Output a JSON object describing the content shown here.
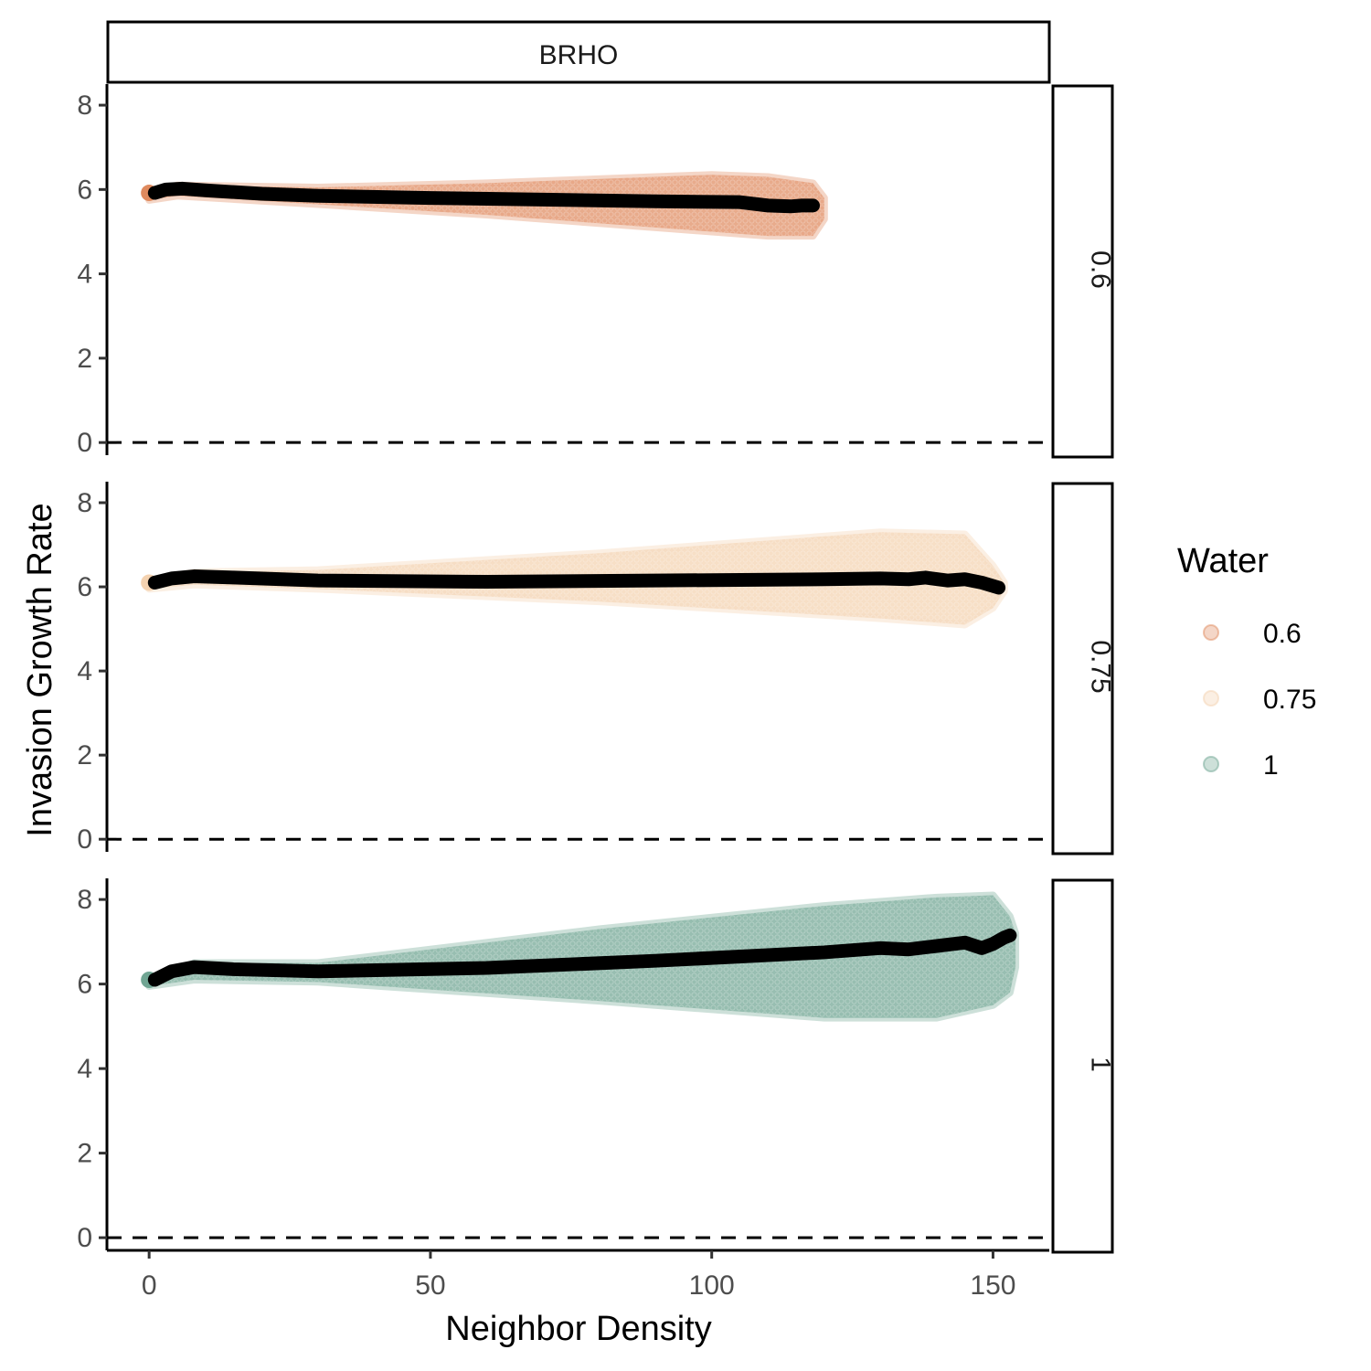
{
  "chart_data": {
    "type": "scatter",
    "title": "",
    "facet_column_label": "BRHO",
    "xlabel": "Neighbor Density",
    "ylabel": "Invasion Growth Rate",
    "xlim": [
      -7.5,
      160
    ],
    "ylim": [
      -0.3,
      8.5
    ],
    "x_ticks": [
      0,
      50,
      100,
      150
    ],
    "y_ticks": [
      0,
      2,
      4,
      6,
      8
    ],
    "reference_line_y": 0,
    "legend": {
      "title": "Water",
      "position": "right",
      "items": [
        {
          "label": "0.6",
          "color": "#df8a5e"
        },
        {
          "label": "0.75",
          "color": "#f4d2b0"
        },
        {
          "label": "1",
          "color": "#70a593"
        }
      ]
    },
    "panels": [
      {
        "facet_label": "0.6",
        "color": "#df8a5e",
        "x_max": 119,
        "spread_upper": [
          [
            0,
            5.9
          ],
          [
            5,
            6.1
          ],
          [
            30,
            6.05
          ],
          [
            60,
            6.15
          ],
          [
            100,
            6.35
          ],
          [
            110,
            6.3
          ],
          [
            118,
            6.15
          ],
          [
            120,
            5.8
          ]
        ],
        "spread_lower": [
          [
            0,
            5.75
          ],
          [
            5,
            5.85
          ],
          [
            30,
            5.65
          ],
          [
            60,
            5.4
          ],
          [
            100,
            5.0
          ],
          [
            110,
            4.9
          ],
          [
            118,
            4.9
          ],
          [
            120,
            5.3
          ]
        ],
        "mean_line": [
          [
            1,
            5.92
          ],
          [
            3,
            6.0
          ],
          [
            6,
            6.02
          ],
          [
            10,
            5.98
          ],
          [
            20,
            5.9
          ],
          [
            30,
            5.85
          ],
          [
            50,
            5.8
          ],
          [
            70,
            5.76
          ],
          [
            90,
            5.72
          ],
          [
            105,
            5.7
          ],
          [
            110,
            5.62
          ],
          [
            114,
            5.6
          ],
          [
            116,
            5.62
          ],
          [
            118,
            5.62
          ]
        ]
      },
      {
        "facet_label": "0.75",
        "color": "#f4d2b0",
        "x_max": 151,
        "spread_upper": [
          [
            0,
            6.1
          ],
          [
            8,
            6.35
          ],
          [
            30,
            6.4
          ],
          [
            80,
            6.8
          ],
          [
            130,
            7.3
          ],
          [
            145,
            7.25
          ],
          [
            150,
            6.5
          ],
          [
            152,
            6.1
          ]
        ],
        "spread_lower": [
          [
            0,
            5.95
          ],
          [
            8,
            6.05
          ],
          [
            30,
            5.95
          ],
          [
            80,
            5.65
          ],
          [
            130,
            5.25
          ],
          [
            145,
            5.1
          ],
          [
            150,
            5.5
          ],
          [
            152,
            5.9
          ]
        ],
        "mean_line": [
          [
            1,
            6.1
          ],
          [
            4,
            6.2
          ],
          [
            8,
            6.25
          ],
          [
            15,
            6.22
          ],
          [
            30,
            6.15
          ],
          [
            60,
            6.12
          ],
          [
            90,
            6.15
          ],
          [
            120,
            6.18
          ],
          [
            130,
            6.2
          ],
          [
            135,
            6.18
          ],
          [
            138,
            6.22
          ],
          [
            142,
            6.15
          ],
          [
            145,
            6.18
          ],
          [
            148,
            6.1
          ],
          [
            151,
            5.98
          ]
        ]
      },
      {
        "facet_label": "1",
        "color": "#70a593",
        "x_max": 153,
        "spread_upper": [
          [
            0,
            6.1
          ],
          [
            8,
            6.5
          ],
          [
            30,
            6.5
          ],
          [
            80,
            7.3
          ],
          [
            120,
            7.85
          ],
          [
            140,
            8.05
          ],
          [
            150,
            8.1
          ],
          [
            153,
            7.6
          ],
          [
            154,
            7.2
          ]
        ],
        "spread_lower": [
          [
            0,
            5.95
          ],
          [
            8,
            6.1
          ],
          [
            30,
            6.05
          ],
          [
            80,
            5.6
          ],
          [
            120,
            5.2
          ],
          [
            140,
            5.2
          ],
          [
            150,
            5.5
          ],
          [
            153,
            5.8
          ],
          [
            154,
            6.4
          ]
        ],
        "mean_line": [
          [
            1,
            6.1
          ],
          [
            4,
            6.3
          ],
          [
            8,
            6.4
          ],
          [
            15,
            6.35
          ],
          [
            30,
            6.3
          ],
          [
            60,
            6.38
          ],
          [
            90,
            6.55
          ],
          [
            120,
            6.75
          ],
          [
            130,
            6.85
          ],
          [
            135,
            6.82
          ],
          [
            140,
            6.9
          ],
          [
            145,
            6.98
          ],
          [
            148,
            6.85
          ],
          [
            150,
            6.95
          ],
          [
            152,
            7.1
          ],
          [
            153,
            7.15
          ]
        ]
      }
    ]
  }
}
